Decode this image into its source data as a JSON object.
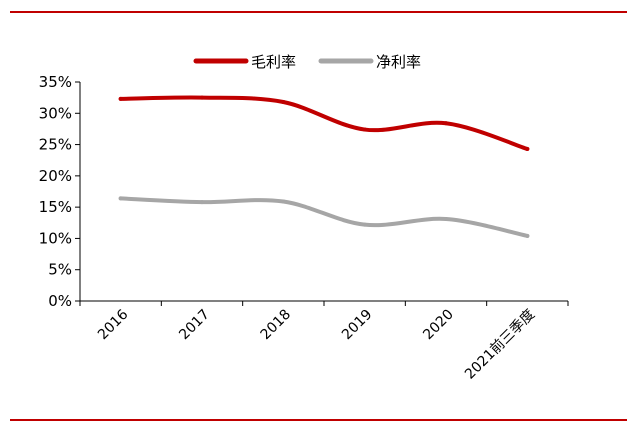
{
  "chart_data": {
    "type": "line",
    "categories": [
      "2016",
      "2017",
      "2018",
      "2019",
      "2020",
      "2021前三季度"
    ],
    "series": [
      {
        "name": "毛利率",
        "values": [
          32.3,
          32.5,
          31.8,
          27.4,
          28.4,
          24.3
        ],
        "color": "#c00000"
      },
      {
        "name": "净利率",
        "values": [
          16.4,
          15.8,
          15.9,
          12.2,
          13.1,
          10.4
        ],
        "color": "#a6a6a6"
      }
    ],
    "ylim": [
      0,
      35
    ],
    "yticks": [
      "0%",
      "5%",
      "10%",
      "15%",
      "20%",
      "25%",
      "30%",
      "35%"
    ],
    "ytick_values": [
      0,
      5,
      10,
      15,
      20,
      25,
      30,
      35
    ],
    "legend_position": "top-center",
    "grid": false
  }
}
